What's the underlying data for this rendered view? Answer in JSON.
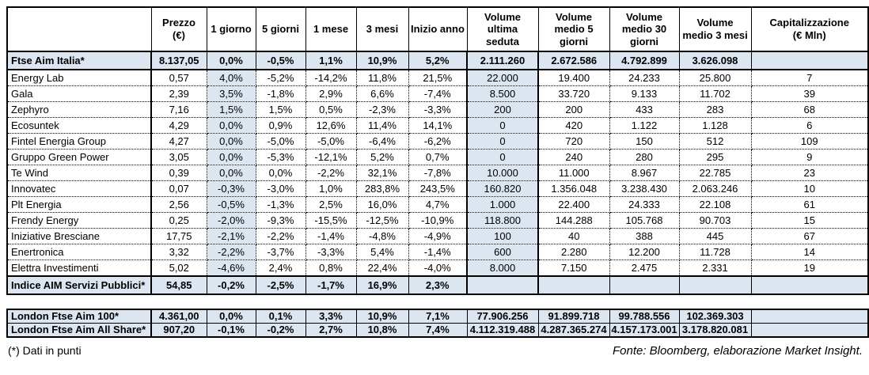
{
  "colors": {
    "row_shade": "#dce6f1",
    "border": "#000000",
    "background": "#ffffff",
    "text": "#000000"
  },
  "chart_data": {
    "type": "table",
    "title": "",
    "layout": {
      "highlighted_columns": [
        "1 giorno",
        "Volume ultima seduta"
      ],
      "highlighted_rows": [
        "Ftse Aim Italia*",
        "Indice AIM Servizi Pubblici*",
        "London Ftse Aim 100*",
        "London Ftse Aim All Share*"
      ]
    },
    "columns": [
      "",
      "Prezzo\n(€)",
      "1 giorno",
      "5 giorni",
      "1 mese",
      "3 mesi",
      "Inizio anno",
      "Volume\nultima\nseduta",
      "Volume\nmedio 5\ngiorni",
      "Volume\nmedio 30\ngiorni",
      "Volume\nmedio 3 mesi",
      "Capitalizzazione\n(€ Mln)"
    ],
    "main_rows": [
      {
        "label": "Ftse Aim Italia*",
        "style": "index",
        "values": [
          "8.137,05",
          "0,0%",
          "-0,5%",
          "1,1%",
          "10,9%",
          "5,2%",
          "2.111.260",
          "2.672.586",
          "4.792.899",
          "3.626.098",
          ""
        ]
      },
      {
        "label": "Energy Lab",
        "style": "data",
        "values": [
          "0,57",
          "4,0%",
          "-5,2%",
          "-14,2%",
          "11,8%",
          "21,5%",
          "22.000",
          "19.400",
          "24.233",
          "25.800",
          "7"
        ]
      },
      {
        "label": "Gala",
        "style": "data",
        "values": [
          "2,39",
          "3,5%",
          "-1,8%",
          "2,9%",
          "6,6%",
          "-7,4%",
          "8.500",
          "33.720",
          "9.133",
          "11.702",
          "39"
        ]
      },
      {
        "label": "Zephyro",
        "style": "data",
        "values": [
          "7,16",
          "1,5%",
          "1,5%",
          "0,5%",
          "-2,3%",
          "-3,3%",
          "200",
          "200",
          "433",
          "283",
          "68"
        ]
      },
      {
        "label": "Ecosuntek",
        "style": "data",
        "values": [
          "4,29",
          "0,0%",
          "0,9%",
          "12,6%",
          "11,4%",
          "14,1%",
          "0",
          "420",
          "1.122",
          "1.128",
          "6"
        ]
      },
      {
        "label": "Fintel Energia Group",
        "style": "data",
        "values": [
          "4,27",
          "0,0%",
          "-5,0%",
          "-5,0%",
          "-6,4%",
          "-6,2%",
          "0",
          "720",
          "150",
          "512",
          "109"
        ]
      },
      {
        "label": "Gruppo Green Power",
        "style": "data",
        "values": [
          "3,05",
          "0,0%",
          "-5,3%",
          "-12,1%",
          "5,2%",
          "0,7%",
          "0",
          "240",
          "280",
          "295",
          "9"
        ]
      },
      {
        "label": "Te Wind",
        "style": "data",
        "values": [
          "0,39",
          "0,0%",
          "0,0%",
          "-2,2%",
          "32,1%",
          "-7,8%",
          "10.000",
          "11.000",
          "8.967",
          "22.785",
          "23"
        ]
      },
      {
        "label": "Innovatec",
        "style": "data",
        "values": [
          "0,07",
          "-0,3%",
          "-3,0%",
          "1,0%",
          "283,8%",
          "243,5%",
          "160.820",
          "1.356.048",
          "3.238.430",
          "2.063.246",
          "10"
        ]
      },
      {
        "label": "Plt Energia",
        "style": "data",
        "values": [
          "2,56",
          "-0,5%",
          "-1,3%",
          "2,5%",
          "16,0%",
          "4,7%",
          "1.000",
          "22.400",
          "24.333",
          "22.108",
          "61"
        ]
      },
      {
        "label": "Frendy Energy",
        "style": "data",
        "values": [
          "0,25",
          "-2,0%",
          "-9,3%",
          "-15,5%",
          "-12,5%",
          "-10,9%",
          "118.800",
          "144.288",
          "105.768",
          "90.703",
          "15"
        ]
      },
      {
        "label": "Iniziative Bresciane",
        "style": "data",
        "values": [
          "17,75",
          "-2,1%",
          "-2,2%",
          "-1,4%",
          "-4,8%",
          "-4,9%",
          "100",
          "40",
          "388",
          "445",
          "67"
        ]
      },
      {
        "label": "Enertronica",
        "style": "data",
        "values": [
          "3,32",
          "-2,2%",
          "-3,7%",
          "-3,3%",
          "5,4%",
          "-1,4%",
          "600",
          "2.280",
          "12.200",
          "11.728",
          "14"
        ]
      },
      {
        "label": "Elettra Investimenti",
        "style": "data",
        "values": [
          "5,02",
          "-4,6%",
          "2,4%",
          "0,8%",
          "22,4%",
          "-4,0%",
          "8.000",
          "7.150",
          "2.475",
          "2.331",
          "19"
        ]
      },
      {
        "label": "Indice AIM Servizi Pubblici*",
        "style": "index",
        "values": [
          "54,85",
          "-0,2%",
          "-2,5%",
          "-1,7%",
          "16,9%",
          "2,3%",
          "",
          "",
          "",
          "",
          ""
        ]
      }
    ],
    "london_rows": [
      {
        "label": "London Ftse Aim 100*",
        "style": "index",
        "values": [
          "4.361,00",
          "0,0%",
          "0,1%",
          "3,3%",
          "10,9%",
          "7,1%",
          "77.906.256",
          "91.899.718",
          "99.788.556",
          "102.369.303",
          ""
        ]
      },
      {
        "label": "London Ftse Aim All Share*",
        "style": "index",
        "values": [
          "907,20",
          "-0,1%",
          "-0,2%",
          "2,7%",
          "10,8%",
          "7,4%",
          "4.112.319.488",
          "4.287.365.274",
          "4.157.173.001",
          "3.178.820.081",
          ""
        ]
      }
    ]
  },
  "footnotes": {
    "left": "(*) Dati in punti",
    "right": "Fonte: Bloomberg, elaborazione Market Insight."
  }
}
